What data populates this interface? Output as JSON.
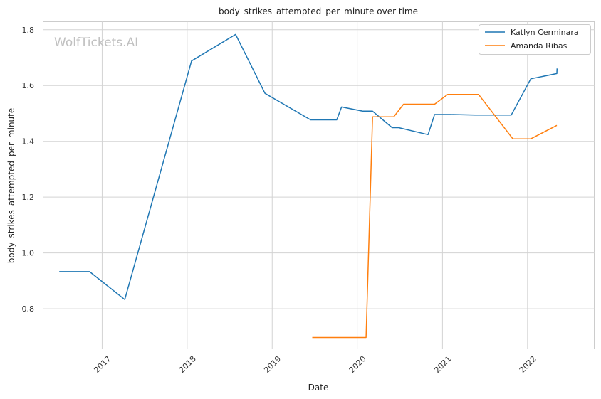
{
  "chart_data": {
    "type": "line",
    "title": "body_strikes_attempted_per_minute over time",
    "xlabel": "Date",
    "ylabel": "body_strikes_attempted_per_minute",
    "watermark": "WolfTickets.AI",
    "x_ticks": [
      "2017",
      "2018",
      "2019",
      "2020",
      "2021",
      "2022"
    ],
    "y_ticks": [
      "0.8",
      "1.0",
      "1.2",
      "1.4",
      "1.6",
      "1.8"
    ],
    "xlim": [
      "2016-04-21",
      "2022-10-16"
    ],
    "ylim": [
      0.655,
      1.83
    ],
    "grid": true,
    "legend_position": "top-right",
    "series": [
      {
        "name": "Katlyn Cerminara",
        "color": "#1f77b4",
        "points": [
          [
            "2016-07-01",
            0.933
          ],
          [
            "2016-11-08",
            0.933
          ],
          [
            "2017-04-08",
            0.833
          ],
          [
            "2018-01-20",
            1.688
          ],
          [
            "2018-07-28",
            1.783
          ],
          [
            "2018-12-01",
            1.572
          ],
          [
            "2019-06-15",
            1.477
          ],
          [
            "2019-10-05",
            1.477
          ],
          [
            "2019-10-26",
            1.523
          ],
          [
            "2020-01-25",
            1.508
          ],
          [
            "2020-03-07",
            1.508
          ],
          [
            "2020-05-30",
            1.449
          ],
          [
            "2020-06-27",
            1.449
          ],
          [
            "2020-10-31",
            1.424
          ],
          [
            "2020-11-28",
            1.496
          ],
          [
            "2021-02-06",
            1.496
          ],
          [
            "2021-05-22",
            1.494
          ],
          [
            "2021-10-23",
            1.494
          ],
          [
            "2022-01-15",
            1.624
          ],
          [
            "2022-05-07",
            1.643
          ],
          [
            "2022-05-08",
            1.661
          ]
        ]
      },
      {
        "name": "Amanda Ribas",
        "color": "#ff7f0e",
        "points": [
          [
            "2019-06-22",
            0.697
          ],
          [
            "2020-02-08",
            0.697
          ],
          [
            "2020-03-07",
            1.488
          ],
          [
            "2020-06-06",
            1.488
          ],
          [
            "2020-07-18",
            1.533
          ],
          [
            "2020-11-28",
            1.533
          ],
          [
            "2021-01-23",
            1.568
          ],
          [
            "2021-06-05",
            1.568
          ],
          [
            "2021-10-30",
            1.409
          ],
          [
            "2022-01-15",
            1.409
          ],
          [
            "2022-05-07",
            1.457
          ]
        ]
      }
    ]
  }
}
